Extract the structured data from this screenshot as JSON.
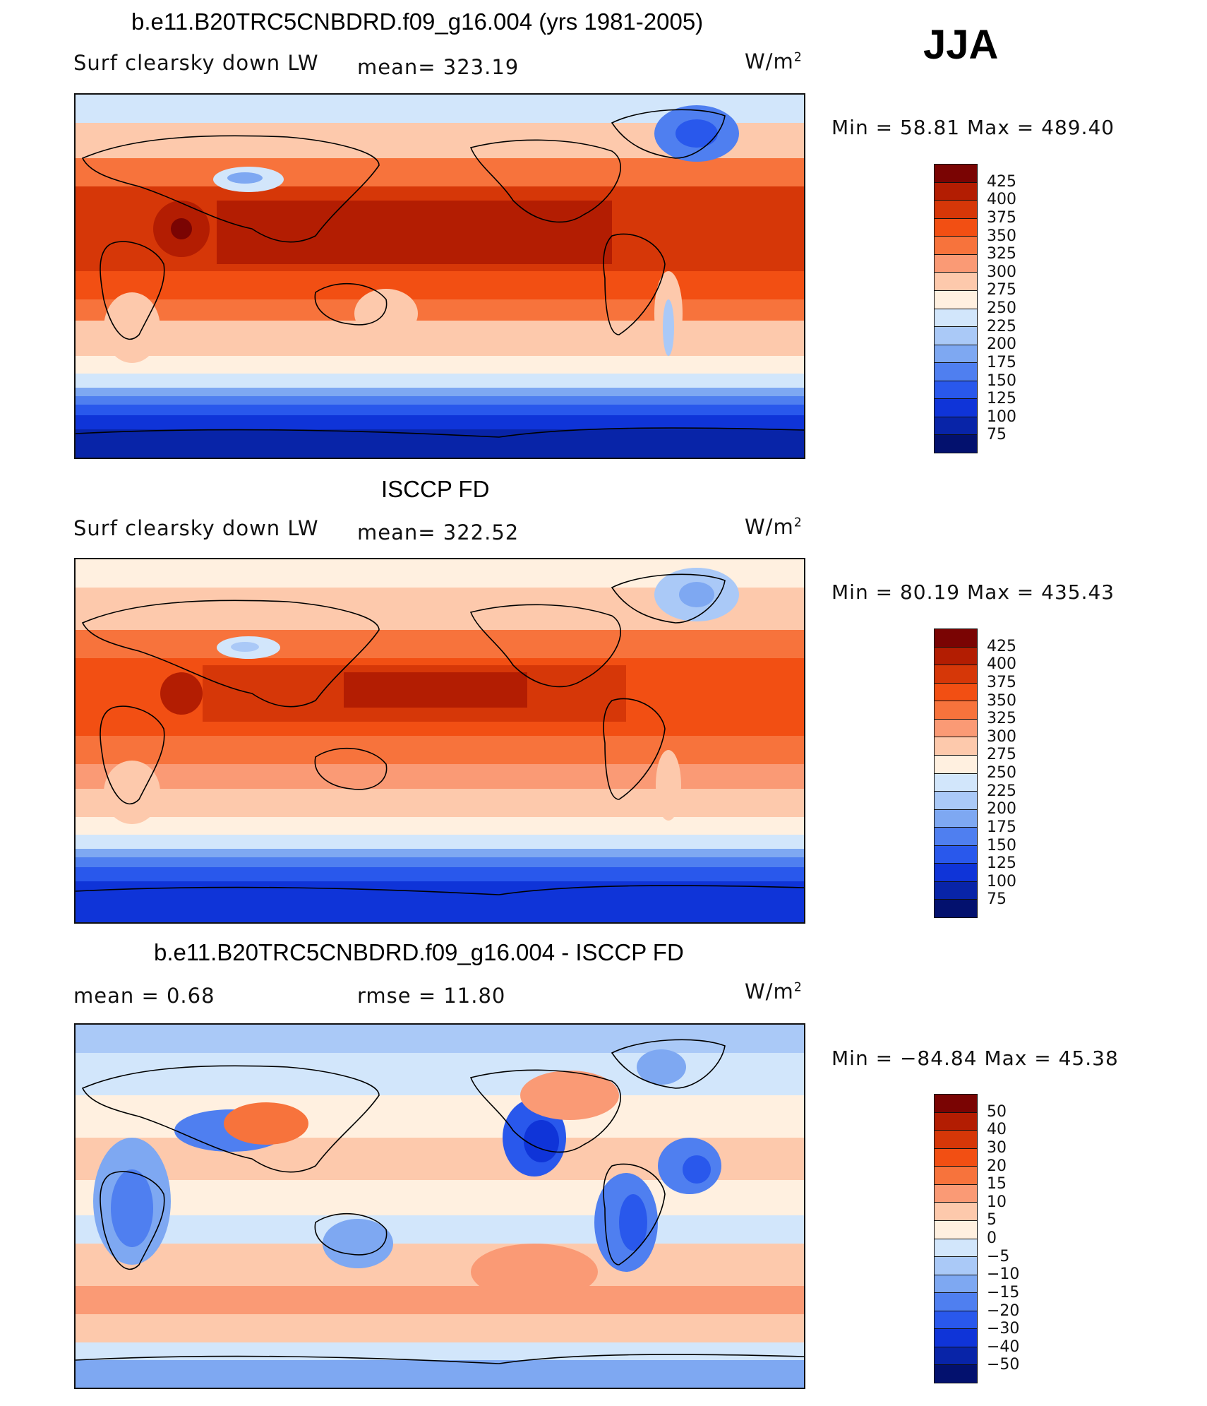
{
  "season": "JJA",
  "units": "W/m2",
  "panels": [
    {
      "title": "b.e11.B20TRC5CNBDRD.f09_g16.004 (yrs 1981-2005)",
      "left_label": "Surf  clearsky  down  LW",
      "stat_label": "mean=  323.19",
      "minmax": "Min  =    58.81  Max  =  489.40",
      "colorbar": {
        "ticks": [
          "425",
          "400",
          "375",
          "350",
          "325",
          "300",
          "275",
          "250",
          "225",
          "200",
          "175",
          "150",
          "125",
          "100",
          "75"
        ],
        "colors": [
          "#7a0403",
          "#b31d02",
          "#d63708",
          "#f24f13",
          "#f7733c",
          "#fa9a75",
          "#fdc9ac",
          "#fff0e0",
          "#d2e6fb",
          "#aac9f7",
          "#7ea8f2",
          "#4f7ff0",
          "#2958ec",
          "#0f34d8",
          "#0824a8",
          "#03116e"
        ]
      }
    },
    {
      "title": "ISCCP FD",
      "left_label": "Surf  clearsky  down  LW",
      "stat_label": "mean=  322.52",
      "minmax": "Min  =    80.19  Max  =  435.43",
      "colorbar": {
        "ticks": [
          "425",
          "400",
          "375",
          "350",
          "325",
          "300",
          "275",
          "250",
          "225",
          "200",
          "175",
          "150",
          "125",
          "100",
          "75"
        ],
        "colors": [
          "#7a0403",
          "#b31d02",
          "#d63708",
          "#f24f13",
          "#f7733c",
          "#fa9a75",
          "#fdc9ac",
          "#fff0e0",
          "#d2e6fb",
          "#aac9f7",
          "#7ea8f2",
          "#4f7ff0",
          "#2958ec",
          "#0f34d8",
          "#0824a8",
          "#03116e"
        ]
      }
    },
    {
      "title": "b.e11.B20TRC5CNBDRD.f09_g16.004 - ISCCP FD",
      "left_label": "mean  =     0.68",
      "stat_label": "rmse  =    11.80",
      "minmax": "Min  =  −84.84  Max  =     45.38",
      "colorbar": {
        "ticks": [
          "50",
          "40",
          "30",
          "20",
          "15",
          "10",
          "5",
          "0",
          "−5",
          "−10",
          "−15",
          "−20",
          "−30",
          "−40",
          "−50"
        ],
        "colors": [
          "#7a0403",
          "#b31d02",
          "#d63708",
          "#f24f13",
          "#f7733c",
          "#fa9a75",
          "#fdc9ac",
          "#fff0e0",
          "#d2e6fb",
          "#aac9f7",
          "#7ea8f2",
          "#4f7ff0",
          "#2958ec",
          "#0f34d8",
          "#0824a8",
          "#03116e"
        ]
      }
    }
  ]
}
